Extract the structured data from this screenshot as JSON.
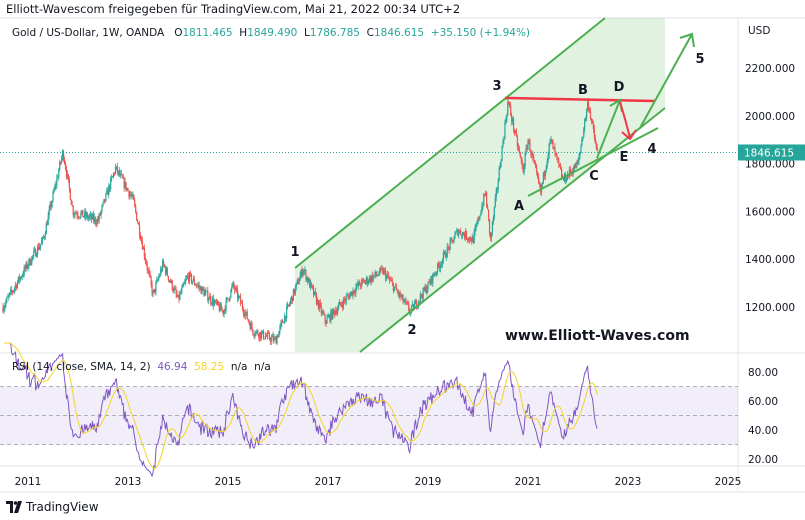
{
  "header": {
    "shared_by": "Elliott-Wavescom freigegeben für TradingView.com, Mai 21, 2022 00:34 UTC+2"
  },
  "legend": {
    "symbol": "Gold  / US-Dollar, 1W, OANDA",
    "o_label": "O",
    "o": "1811.465",
    "h_label": "H",
    "h": "1849.490",
    "l_label": "L",
    "l": "1786.785",
    "c_label": "C",
    "c": "1846.615",
    "change": "+35.150 (+1.94%)"
  },
  "rsi_legend": {
    "label": "RSI (14, close, SMA, 14, 2)",
    "rsi": "46.94",
    "sma": "58.25",
    "na1": "n/a",
    "na2": "n/a"
  },
  "colors": {
    "up": "#26a69a",
    "down": "#ef5350",
    "channel": "#4caf50",
    "red_line": "#f23645",
    "rsi": "#7e57c2",
    "rsi_ma": "#f5d327"
  },
  "footer": {
    "brand": "TradingView"
  },
  "chart_data": {
    "type": "candlestick",
    "title": "Gold / US-Dollar, 1W, OANDA",
    "currency": "USD",
    "last_price": "1846.615",
    "price_ticks": [
      "2200.000",
      "2000.000",
      "1800.000",
      "1600.000",
      "1400.000",
      "1200.000"
    ],
    "price_tick_values": [
      2200,
      2000,
      1800,
      1600,
      1400,
      1200
    ],
    "x_ticks": [
      "2011",
      "2013",
      "2015",
      "2017",
      "2019",
      "2021",
      "2023",
      "2025"
    ],
    "x_tick_values": [
      2011,
      2013,
      2015,
      2017,
      2019,
      2021,
      2023,
      2025
    ],
    "price_path": [
      [
        2010.5,
        1200
      ],
      [
        2011.0,
        1380
      ],
      [
        2011.3,
        1480
      ],
      [
        2011.7,
        1850
      ],
      [
        2011.9,
        1600
      ],
      [
        2012.4,
        1560
      ],
      [
        2012.75,
        1780
      ],
      [
        2013.1,
        1650
      ],
      [
        2013.5,
        1250
      ],
      [
        2013.7,
        1380
      ],
      [
        2014.0,
        1230
      ],
      [
        2014.2,
        1330
      ],
      [
        2014.9,
        1180
      ],
      [
        2015.1,
        1290
      ],
      [
        2015.5,
        1100
      ],
      [
        2015.95,
        1060
      ],
      [
        2016.5,
        1360
      ],
      [
        2016.95,
        1140
      ],
      [
        2017.6,
        1290
      ],
      [
        2018.1,
        1350
      ],
      [
        2018.65,
        1180
      ],
      [
        2019.0,
        1290
      ],
      [
        2019.6,
        1520
      ],
      [
        2019.9,
        1480
      ],
      [
        2020.15,
        1680
      ],
      [
        2020.25,
        1480
      ],
      [
        2020.6,
        2060
      ],
      [
        2020.9,
        1770
      ],
      [
        2021.0,
        1900
      ],
      [
        2021.25,
        1680
      ],
      [
        2021.45,
        1900
      ],
      [
        2021.7,
        1730
      ],
      [
        2022.0,
        1800
      ],
      [
        2022.2,
        2060
      ],
      [
        2022.38,
        1846
      ]
    ],
    "rsi_ticks": [
      "80.00",
      "60.00",
      "40.00",
      "20.00"
    ],
    "rsi_tick_values": [
      80,
      60,
      40,
      20
    ],
    "rsi_band": [
      30,
      70
    ],
    "annotations": {
      "wave_labels": [
        "1",
        "2",
        "3",
        "A",
        "B",
        "C",
        "D",
        "E",
        "4",
        "5"
      ],
      "watermark": "www.Elliott-Waves.com"
    }
  }
}
